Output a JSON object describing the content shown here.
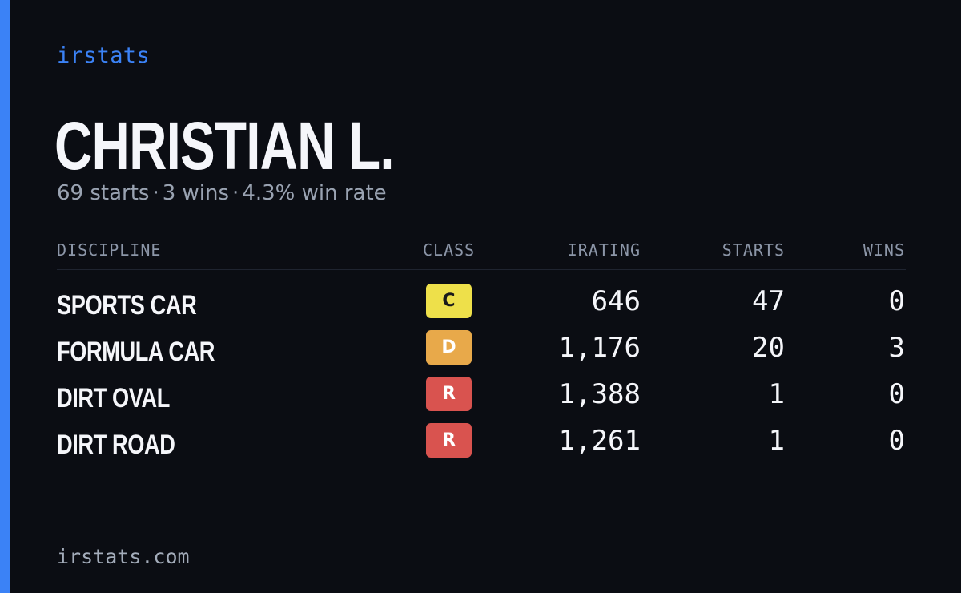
{
  "brand": "irstats",
  "driver": {
    "name": "CHRISTIAN L.",
    "starts_text": "69 starts",
    "wins_text": "3 wins",
    "winrate_text": "4.3% win rate",
    "separator": "·"
  },
  "table": {
    "headers": {
      "discipline": "DISCIPLINE",
      "class": "CLASS",
      "irating": "IRATING",
      "starts": "STARTS",
      "wins": "WINS"
    },
    "rows": [
      {
        "discipline": "SPORTS CAR",
        "class": "C",
        "class_color": "#eee04a",
        "class_text_color": "#1a1a1a",
        "irating": "646",
        "starts": "47",
        "wins": "0"
      },
      {
        "discipline": "FORMULA CAR",
        "class": "D",
        "class_color": "#e8a94a",
        "class_text_color": "#ffffff",
        "irating": "1,176",
        "starts": "20",
        "wins": "3"
      },
      {
        "discipline": "DIRT OVAL",
        "class": "R",
        "class_color": "#d9534f",
        "class_text_color": "#ffffff",
        "irating": "1,388",
        "starts": "1",
        "wins": "0"
      },
      {
        "discipline": "DIRT ROAD",
        "class": "R",
        "class_color": "#d9534f",
        "class_text_color": "#ffffff",
        "irating": "1,261",
        "starts": "1",
        "wins": "0"
      }
    ]
  },
  "footer": {
    "site": "irstats.com"
  },
  "colors": {
    "background": "#0b0d13",
    "accent": "#3b82f6",
    "text": "#f5f6fa",
    "muted": "#9aa3b2"
  }
}
